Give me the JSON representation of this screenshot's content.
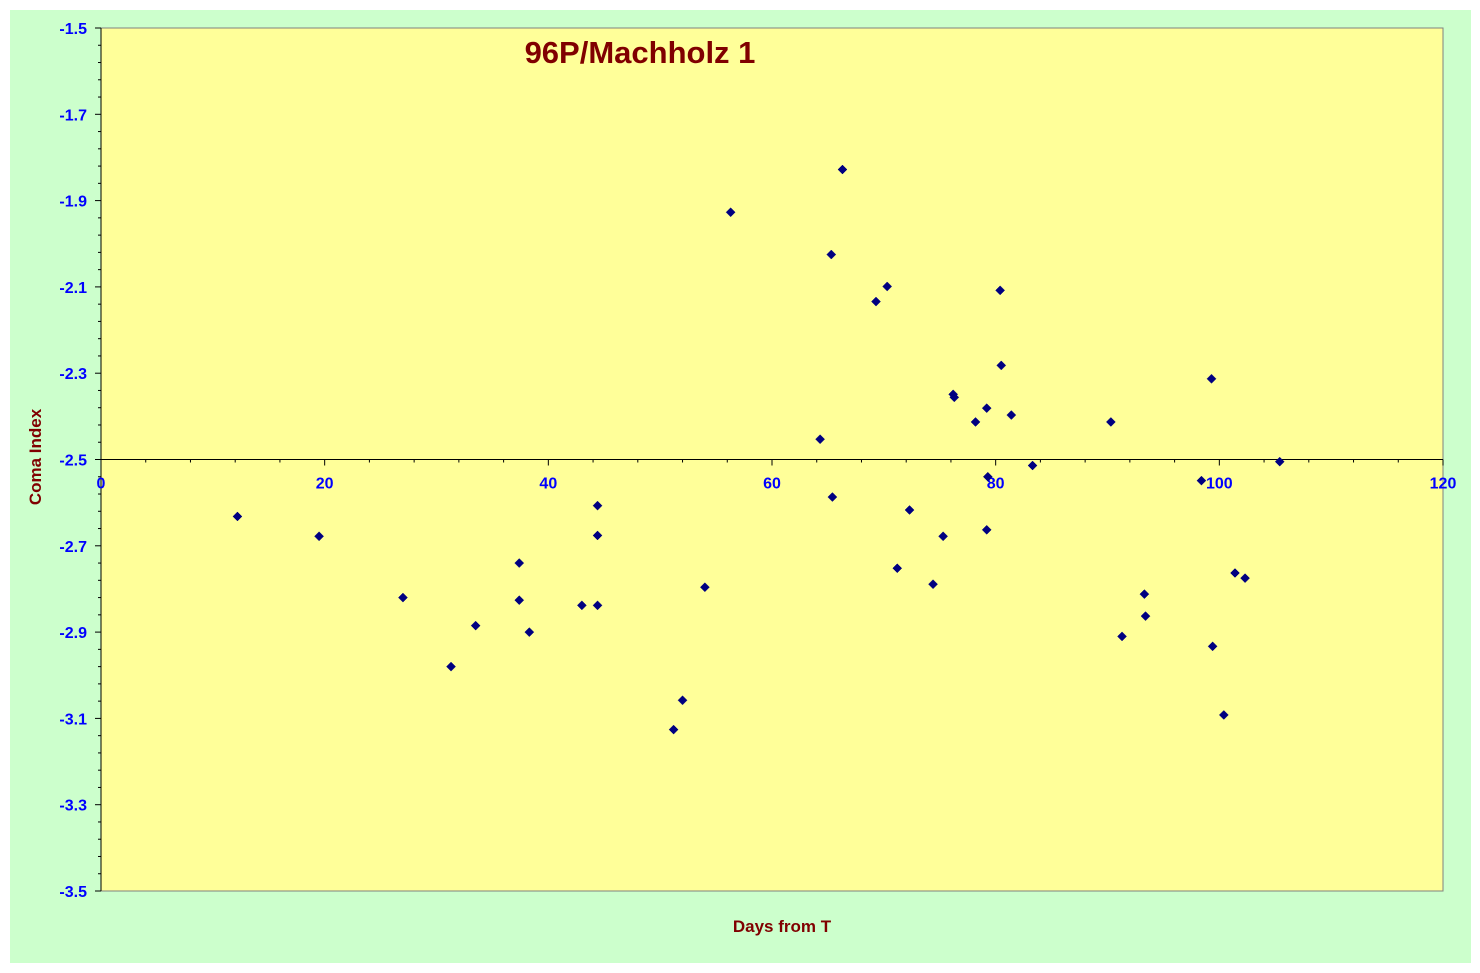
{
  "chart_data": {
    "type": "scatter",
    "title": "96P/Machholz 1",
    "xlabel": "Days from T",
    "ylabel": "Coma Index",
    "xlim": [
      0,
      120
    ],
    "ylim": [
      -3.5,
      -1.5
    ],
    "x_ticks": [
      "0",
      "20",
      "40",
      "60",
      "80",
      "100",
      "120"
    ],
    "y_ticks": [
      "-1.5",
      "-1.7",
      "-1.9",
      "-2.1",
      "-2.3",
      "-2.5",
      "-2.7",
      "-2.9",
      "-3.1",
      "-3.3",
      "-3.5"
    ],
    "x_axis_crosses_at": -2.5,
    "grid": false,
    "legend": "none",
    "colors": {
      "plot_background": "#ffff99",
      "chart_background": "#ccffcc",
      "marker": "#000080",
      "tick_labels": "#0000ff",
      "titles": "#800000"
    },
    "series": [
      {
        "points": [
          [
            12.2,
            -2.632
          ],
          [
            19.5,
            -2.678
          ],
          [
            27.0,
            -2.82
          ],
          [
            31.3,
            -2.98
          ],
          [
            33.5,
            -2.885
          ],
          [
            37.4,
            -2.74
          ],
          [
            37.4,
            -2.826
          ],
          [
            38.3,
            -2.9
          ],
          [
            43.0,
            -2.838
          ],
          [
            44.4,
            -2.607
          ],
          [
            44.4,
            -2.676
          ],
          [
            44.4,
            -2.838
          ],
          [
            51.2,
            -3.126
          ],
          [
            52.0,
            -3.058
          ],
          [
            54.0,
            -2.796
          ],
          [
            56.3,
            -1.927
          ],
          [
            64.3,
            -2.453
          ],
          [
            65.3,
            -2.025
          ],
          [
            65.4,
            -2.587
          ],
          [
            66.3,
            -1.828
          ],
          [
            69.3,
            -2.134
          ],
          [
            70.3,
            -2.099
          ],
          [
            71.2,
            -2.752
          ],
          [
            72.3,
            -2.617
          ],
          [
            74.4,
            -2.789
          ],
          [
            75.3,
            -2.678
          ],
          [
            76.2,
            -2.349
          ],
          [
            76.3,
            -2.356
          ],
          [
            78.2,
            -2.413
          ],
          [
            79.2,
            -2.381
          ],
          [
            79.3,
            -2.54
          ],
          [
            79.2,
            -2.663
          ],
          [
            80.4,
            -2.108
          ],
          [
            80.5,
            -2.282
          ],
          [
            81.4,
            -2.397
          ],
          [
            83.3,
            -2.514
          ],
          [
            90.3,
            -2.413
          ],
          [
            91.3,
            -2.91
          ],
          [
            93.3,
            -2.812
          ],
          [
            93.4,
            -2.863
          ],
          [
            98.4,
            -2.549
          ],
          [
            99.3,
            -2.313
          ],
          [
            99.4,
            -2.933
          ],
          [
            100.4,
            -3.092
          ],
          [
            101.4,
            -2.763
          ],
          [
            102.3,
            -2.775
          ],
          [
            105.4,
            -2.505
          ]
        ]
      }
    ]
  }
}
